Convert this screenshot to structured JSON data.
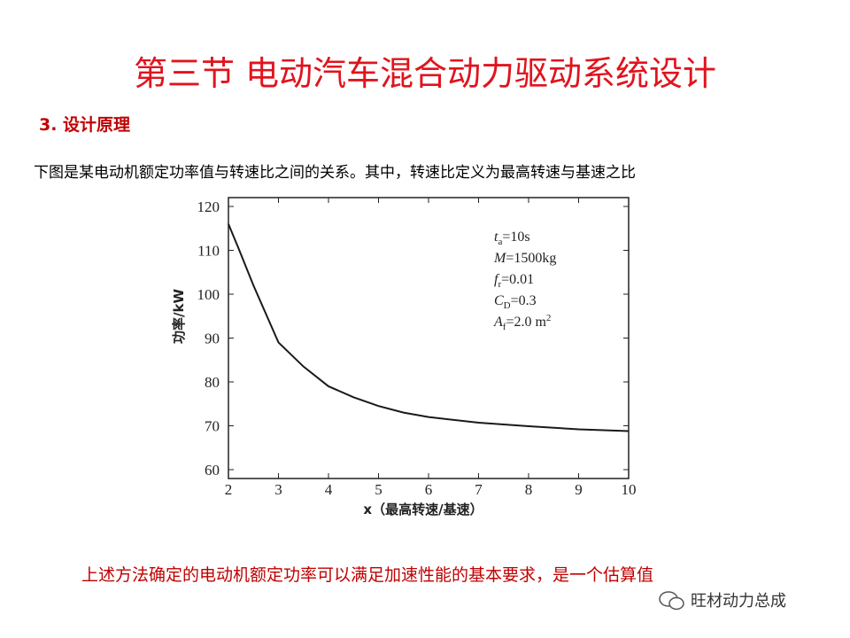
{
  "title": "第三节  电动汽车混合动力驱动系统设计",
  "section": "3. 设计原理",
  "description": "下图是某电动机额定功率值与转速比之间的关系。其中，转速比定义为最高转速与基速之比",
  "conclusion": "上述方法确定的电动机额定功率可以满足加速性能的基本要求，是一个估算值",
  "watermark": "旺材动力总成",
  "chart_data": {
    "type": "line",
    "x_label": "x（最高转速/基速）",
    "y_label": "功率/kW",
    "x": [
      2,
      2.2,
      2.5,
      3,
      3.5,
      4,
      4.5,
      5,
      5.5,
      6,
      7,
      8,
      9,
      10
    ],
    "series": [
      {
        "name": "功率",
        "color": "#1a1a1a",
        "values": [
          116,
          110.5,
          102,
          89,
          83.5,
          79,
          76.5,
          74.5,
          73,
          72,
          70.7,
          69.9,
          69.2,
          68.8
        ]
      }
    ],
    "xlim": [
      2,
      10
    ],
    "xticks": [
      2,
      3,
      4,
      5,
      6,
      7,
      8,
      9,
      10
    ],
    "ylim": [
      60,
      120
    ],
    "yticks": [
      60,
      70,
      80,
      90,
      100,
      110,
      120
    ],
    "annotations": [
      {
        "symbol": "t",
        "subscript": "a",
        "text": "=10s"
      },
      {
        "symbol": "M",
        "text": "=1500kg"
      },
      {
        "symbol": "f",
        "subscript": "r",
        "text": "=0.01"
      },
      {
        "symbol": "C",
        "subscript": "D",
        "text": "=0.3"
      },
      {
        "symbol": "A",
        "subscript": "f",
        "text": "=2.0 m",
        "superscript": "2"
      }
    ]
  }
}
